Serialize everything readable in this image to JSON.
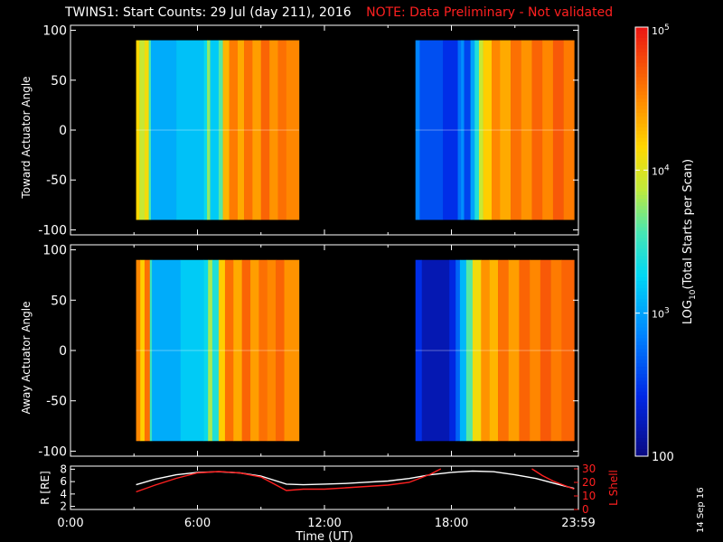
{
  "title": {
    "main": "TWINS1: Start Counts: 29 Jul (day 211), 2016",
    "note": "NOTE: Data Preliminary - Not validated"
  },
  "date_stamp": "14 Sep 16",
  "colors": {
    "background": "#000000",
    "axes": "#ffffff",
    "note": "#ff2020",
    "r_line": "#ffffff",
    "l_shell_line": "#ff2020"
  },
  "chart_data": [
    {
      "type": "heatmap",
      "panel": "top",
      "ylabel": "Toward Actuator Angle",
      "ylim": [
        -105,
        105
      ],
      "yticks": [
        100,
        50,
        0,
        -50,
        -100
      ],
      "xlim_hours": [
        0,
        24
      ],
      "data_intervals_hours": [
        [
          3.1,
          10.8
        ],
        [
          16.3,
          23.8
        ]
      ],
      "data_angle_range": [
        -90,
        90
      ],
      "colorscale": "log",
      "note": "log10 counts per time column",
      "columns": [
        {
          "start": 3.1,
          "level": 4.15
        },
        {
          "start": 3.25,
          "level": 3.9
        },
        {
          "start": 3.5,
          "level": 4.1
        },
        {
          "start": 3.7,
          "level": 3.55
        },
        {
          "start": 3.8,
          "level": 3.05
        },
        {
          "start": 5.0,
          "level": 3.15
        },
        {
          "start": 6.3,
          "level": 3.3
        },
        {
          "start": 6.45,
          "level": 3.75
        },
        {
          "start": 6.6,
          "level": 3.2
        },
        {
          "start": 7.0,
          "level": 3.6
        },
        {
          "start": 7.2,
          "level": 4.3
        },
        {
          "start": 7.5,
          "level": 4.55
        },
        {
          "start": 7.9,
          "level": 4.35
        },
        {
          "start": 8.2,
          "level": 4.6
        },
        {
          "start": 8.6,
          "level": 4.4
        },
        {
          "start": 9.0,
          "level": 4.65
        },
        {
          "start": 9.4,
          "level": 4.45
        },
        {
          "start": 9.8,
          "level": 4.6
        },
        {
          "start": 10.2,
          "level": 4.5
        },
        {
          "start": 16.3,
          "level": 2.85
        },
        {
          "start": 16.5,
          "level": 2.6
        },
        {
          "start": 17.6,
          "level": 2.45
        },
        {
          "start": 18.3,
          "level": 2.75
        },
        {
          "start": 18.45,
          "level": 2.9
        },
        {
          "start": 18.6,
          "level": 2.55
        },
        {
          "start": 18.9,
          "level": 3.0
        },
        {
          "start": 19.1,
          "level": 3.4
        },
        {
          "start": 19.3,
          "level": 3.9
        },
        {
          "start": 19.5,
          "level": 4.2
        },
        {
          "start": 19.9,
          "level": 4.5
        },
        {
          "start": 20.3,
          "level": 4.35
        },
        {
          "start": 20.8,
          "level": 4.6
        },
        {
          "start": 21.3,
          "level": 4.45
        },
        {
          "start": 21.8,
          "level": 4.65
        },
        {
          "start": 22.3,
          "level": 4.5
        },
        {
          "start": 22.8,
          "level": 4.7
        },
        {
          "start": 23.3,
          "level": 4.55
        }
      ]
    },
    {
      "type": "heatmap",
      "panel": "middle",
      "ylabel": "Away Actuator Angle",
      "ylim": [
        -105,
        105
      ],
      "yticks": [
        100,
        50,
        0,
        -50,
        -100
      ],
      "xlim_hours": [
        0,
        24
      ],
      "data_intervals_hours": [
        [
          3.1,
          10.8
        ],
        [
          16.3,
          23.8
        ]
      ],
      "data_angle_range": [
        -90,
        90
      ],
      "colorscale": "log",
      "note": "log10 counts per time column",
      "columns": [
        {
          "start": 3.1,
          "level": 4.5
        },
        {
          "start": 3.3,
          "level": 4.2
        },
        {
          "start": 3.5,
          "level": 4.6
        },
        {
          "start": 3.75,
          "level": 3.5
        },
        {
          "start": 3.85,
          "level": 3.05
        },
        {
          "start": 5.2,
          "level": 3.2
        },
        {
          "start": 6.3,
          "level": 3.3
        },
        {
          "start": 6.5,
          "level": 3.8
        },
        {
          "start": 6.7,
          "level": 3.4
        },
        {
          "start": 7.0,
          "level": 4.2
        },
        {
          "start": 7.3,
          "level": 4.6
        },
        {
          "start": 7.7,
          "level": 4.35
        },
        {
          "start": 8.1,
          "level": 4.65
        },
        {
          "start": 8.5,
          "level": 4.4
        },
        {
          "start": 8.9,
          "level": 4.6
        },
        {
          "start": 9.3,
          "level": 4.5
        },
        {
          "start": 9.7,
          "level": 4.65
        },
        {
          "start": 10.1,
          "level": 4.45
        },
        {
          "start": 16.3,
          "level": 2.45
        },
        {
          "start": 16.6,
          "level": 2.2
        },
        {
          "start": 17.9,
          "level": 2.4
        },
        {
          "start": 18.2,
          "level": 2.7
        },
        {
          "start": 18.4,
          "level": 3.1
        },
        {
          "start": 18.7,
          "level": 3.6
        },
        {
          "start": 19.0,
          "level": 4.1
        },
        {
          "start": 19.4,
          "level": 4.45
        },
        {
          "start": 19.8,
          "level": 4.3
        },
        {
          "start": 20.2,
          "level": 4.6
        },
        {
          "start": 20.7,
          "level": 4.4
        },
        {
          "start": 21.2,
          "level": 4.65
        },
        {
          "start": 21.7,
          "level": 4.5
        },
        {
          "start": 22.2,
          "level": 4.7
        },
        {
          "start": 22.7,
          "level": 4.55
        },
        {
          "start": 23.2,
          "level": 4.65
        }
      ]
    },
    {
      "type": "line",
      "panel": "bottom",
      "ylabel": "R [RE]",
      "ylim": [
        1.5,
        8.5
      ],
      "yticks": [
        8,
        6,
        4,
        2
      ],
      "y2label": "L Shell",
      "y2lim": [
        0,
        32
      ],
      "y2ticks": [
        30,
        20,
        10,
        0
      ],
      "xlabel": "Time (UT)",
      "xlim_hours": [
        0,
        24
      ],
      "xticks": [
        "0:00",
        "6:00",
        "12:00",
        "18:00",
        "23:59"
      ],
      "xtick_hours": [
        0,
        6,
        12,
        18,
        24
      ],
      "series": [
        {
          "axis": "left",
          "color": "#ffffff",
          "x": [
            3.1,
            4.0,
            5.0,
            6.0,
            7.0,
            8.0,
            9.0,
            10.2,
            11.0,
            12.0,
            13.0,
            14.0,
            15.0,
            16.0,
            17.0,
            18.0,
            19.0,
            20.0,
            21.0,
            22.0,
            23.0,
            23.8
          ],
          "y": [
            5.5,
            6.4,
            7.1,
            7.5,
            7.6,
            7.4,
            6.9,
            5.6,
            5.5,
            5.6,
            5.7,
            5.9,
            6.1,
            6.5,
            7.1,
            7.5,
            7.7,
            7.6,
            7.1,
            6.5,
            5.6,
            4.9
          ]
        },
        {
          "axis": "right",
          "color": "#ff2020",
          "x": [
            3.1,
            4.0,
            5.0,
            6.0,
            7.0,
            8.0,
            9.0,
            10.2,
            11.0,
            12.0,
            13.0,
            14.0,
            15.0,
            16.0,
            17.0,
            17.5
          ],
          "y": [
            13,
            18,
            23,
            27,
            28,
            27,
            24,
            14,
            15,
            15,
            16,
            17,
            18,
            20,
            26,
            30
          ]
        },
        {
          "axis": "right",
          "color": "#ff2020",
          "x": [
            21.8,
            22.3,
            22.8,
            23.3,
            23.8
          ],
          "y": [
            30,
            25,
            21,
            18,
            15
          ]
        }
      ]
    }
  ],
  "colorbar": {
    "label": "LOG10(Total Starts per Scan)",
    "label_main": "LOG",
    "label_sub": "10",
    "label_tail": "(Total Starts per Scan)",
    "tick_labels": [
      "10^5",
      "10^4",
      "10^3",
      "100"
    ],
    "tick_values": [
      100000,
      10000,
      1000,
      100
    ],
    "range": [
      100,
      100000
    ],
    "scale": "log"
  }
}
